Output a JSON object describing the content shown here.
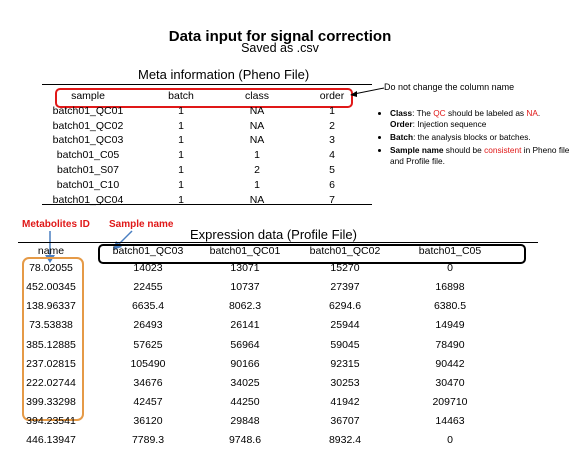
{
  "title": "Data input for signal correction",
  "subtitle": "Saved as .csv",
  "meta": {
    "title": "Meta information (Pheno File)",
    "headers": [
      "sample",
      "batch",
      "class",
      "order"
    ],
    "rows": [
      [
        "batch01_QC01",
        "1",
        "NA",
        "1"
      ],
      [
        "batch01_QC02",
        "1",
        "NA",
        "2"
      ],
      [
        "batch01_QC03",
        "1",
        "NA",
        "3"
      ],
      [
        "batch01_C05",
        "1",
        "1",
        "4"
      ],
      [
        "batch01_S07",
        "1",
        "2",
        "5"
      ],
      [
        "batch01_C10",
        "1",
        "1",
        "6"
      ],
      [
        "batch01_QC04",
        "1",
        "NA",
        "7"
      ]
    ]
  },
  "note": "Do not change the column name",
  "bullets": {
    "class_label": "Class",
    "class_text_1": ": The ",
    "class_qc": "QC",
    "class_text_2": " should be labeled as ",
    "class_na": "NA",
    "class_text_3": ".",
    "order_label": "Order",
    "order_text": ": Injection sequence",
    "batch_label": "Batch",
    "batch_text": ": the analysis blocks or batches.",
    "sample_label": "Sample name",
    "sample_text_1": " should be ",
    "sample_consistent": "consistent",
    "sample_text_2": " in Pheno file and Profile file."
  },
  "labels": {
    "metabolites_id": "Metabolites ID",
    "sample_name": "Sample name"
  },
  "expression": {
    "title": "Expression data (Profile File)",
    "headers": [
      "name",
      "batch01_QC03",
      "batch01_QC01",
      "batch01_QC02",
      "batch01_C05"
    ],
    "rows": [
      [
        "78.02055",
        "14023",
        "13071",
        "15270",
        "0"
      ],
      [
        "452.00345",
        "22455",
        "10737",
        "27397",
        "16898"
      ],
      [
        "138.96337",
        "6635.4",
        "8062.3",
        "6294.6",
        "6380.5"
      ],
      [
        "73.53838",
        "26493",
        "26141",
        "25944",
        "14949"
      ],
      [
        "385.12885",
        "57625",
        "56964",
        "59045",
        "78490"
      ],
      [
        "237.02815",
        "105490",
        "90166",
        "92315",
        "90442"
      ],
      [
        "222.02744",
        "34676",
        "34025",
        "30253",
        "30470"
      ],
      [
        "399.33298",
        "42457",
        "44250",
        "41942",
        "209710"
      ],
      [
        "394.23541",
        "36120",
        "29848",
        "36707",
        "14463"
      ],
      [
        "446.13947",
        "7789.3",
        "9748.6",
        "8932.4",
        "0"
      ]
    ]
  },
  "colors": {
    "red": "#e01818",
    "orange": "#e59a47",
    "blue": "#4a7fc1"
  }
}
